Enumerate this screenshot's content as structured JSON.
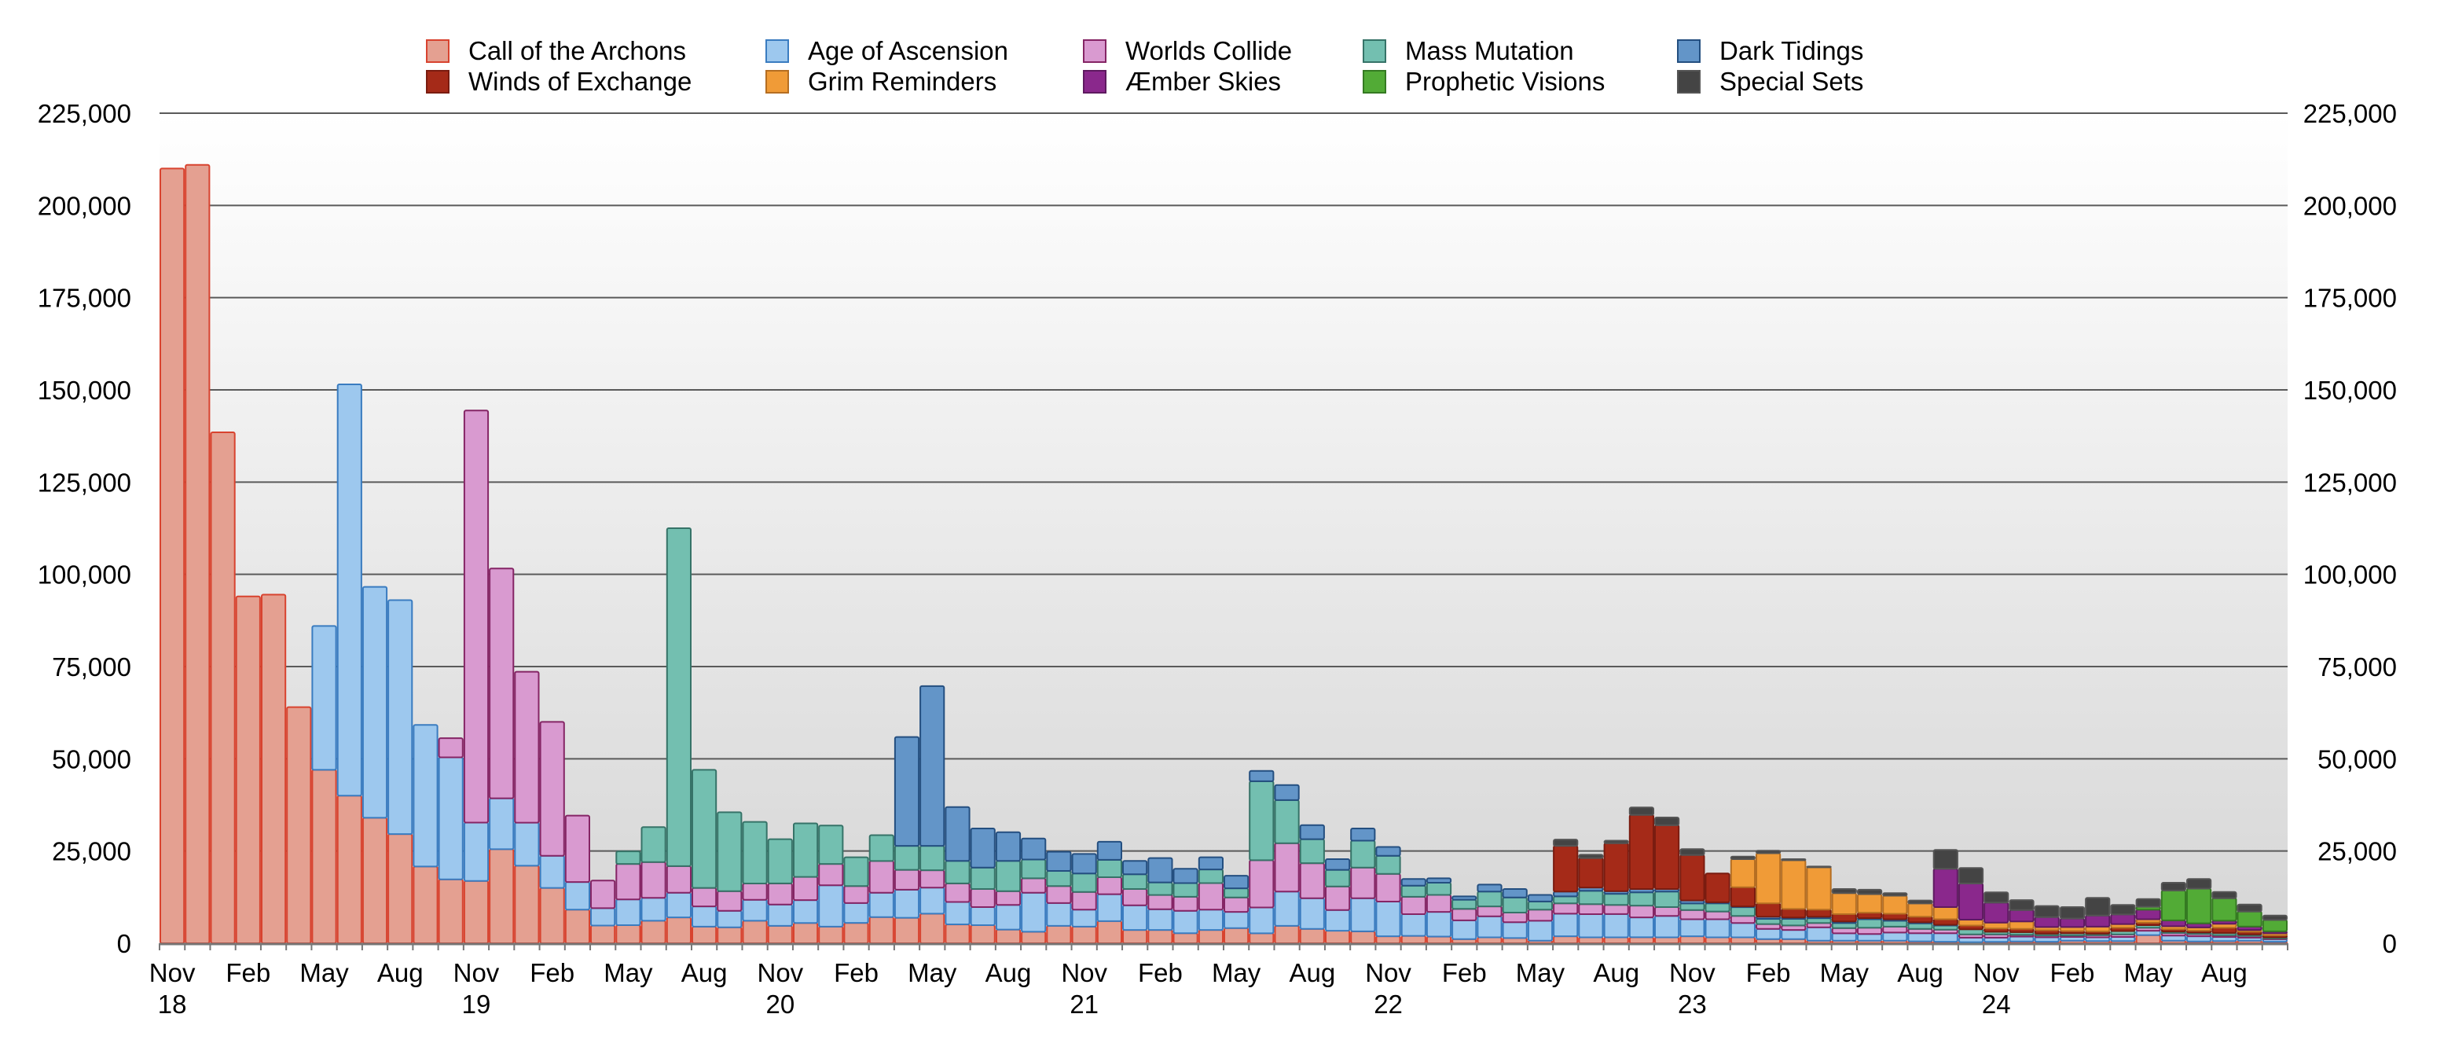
{
  "chart_data": {
    "type": "bar",
    "stacked": true,
    "title": "",
    "xlabel": "",
    "ylabel": "",
    "ylim": [
      0,
      225000
    ],
    "y_ticks": [
      "0",
      "25,000",
      "50,000",
      "75,000",
      "100,000",
      "125,000",
      "150,000",
      "175,000",
      "200,000",
      "225,000"
    ],
    "y_tick_values": [
      0,
      25000,
      50000,
      75000,
      100000,
      125000,
      150000,
      175000,
      200000,
      225000
    ],
    "y_axis_sides": [
      "left",
      "right"
    ],
    "grid": true,
    "legend_position": "top",
    "x_tick_labels": [
      {
        "month": "Nov",
        "year": "18"
      },
      {
        "month": "Feb",
        "year": ""
      },
      {
        "month": "May",
        "year": ""
      },
      {
        "month": "Aug",
        "year": ""
      },
      {
        "month": "Nov",
        "year": "19"
      },
      {
        "month": "Feb",
        "year": ""
      },
      {
        "month": "May",
        "year": ""
      },
      {
        "month": "Aug",
        "year": ""
      },
      {
        "month": "Nov",
        "year": "20"
      },
      {
        "month": "Feb",
        "year": ""
      },
      {
        "month": "May",
        "year": ""
      },
      {
        "month": "Aug",
        "year": ""
      },
      {
        "month": "Nov",
        "year": "21"
      },
      {
        "month": "Feb",
        "year": ""
      },
      {
        "month": "May",
        "year": ""
      },
      {
        "month": "Aug",
        "year": ""
      },
      {
        "month": "Nov",
        "year": "22"
      },
      {
        "month": "Feb",
        "year": ""
      },
      {
        "month": "May",
        "year": ""
      },
      {
        "month": "Aug",
        "year": ""
      },
      {
        "month": "Nov",
        "year": "23"
      },
      {
        "month": "Feb",
        "year": ""
      },
      {
        "month": "May",
        "year": ""
      },
      {
        "month": "Aug",
        "year": ""
      },
      {
        "month": "Nov",
        "year": "24"
      },
      {
        "month": "Feb",
        "year": ""
      },
      {
        "month": "May",
        "year": ""
      },
      {
        "month": "Aug",
        "year": ""
      }
    ],
    "categories": [
      "Nov 18",
      "Dec 18",
      "Jan 19",
      "Feb 19",
      "Mar 19",
      "Apr 19",
      "May 19",
      "Jun 19",
      "Jul 19",
      "Aug 19",
      "Sep 19",
      "Oct 19",
      "Nov 19",
      "Dec 19",
      "Jan 20",
      "Feb 20",
      "Mar 20",
      "Apr 20",
      "May 20",
      "Jun 20",
      "Jul 20",
      "Aug 20",
      "Sep 20",
      "Oct 20",
      "Nov 20",
      "Dec 20",
      "Jan 21",
      "Feb 21",
      "Mar 21",
      "Apr 21",
      "May 21",
      "Jun 21",
      "Jul 21",
      "Aug 21",
      "Sep 21",
      "Oct 21",
      "Nov 21",
      "Dec 21",
      "Jan 22",
      "Feb 22",
      "Mar 22",
      "Apr 22",
      "May 22",
      "Jun 22",
      "Jul 22",
      "Aug 22",
      "Sep 22",
      "Oct 22",
      "Nov 22",
      "Dec 22",
      "Jan 23",
      "Feb 23",
      "Mar 23",
      "Apr 23",
      "May 23",
      "Jun 23",
      "Jul 23",
      "Aug 23",
      "Sep 23",
      "Oct 23",
      "Nov 23",
      "Dec 23",
      "Jan 24",
      "Feb 24",
      "Mar 24",
      "Apr 24",
      "May 24",
      "Jun 24",
      "Jul 24",
      "Aug 24",
      "Sep 24",
      "Oct 24",
      "Nov 24",
      "Dec 24",
      "Jan 25",
      "Feb 25",
      "Mar 25",
      "Apr 25",
      "May 25",
      "Jun 25",
      "Jul 25",
      "Aug 25",
      "Sep 25",
      "Oct 25"
    ],
    "series": [
      {
        "name": "Call of the Archons",
        "color": "#e4a091",
        "stroke": "#d8432f",
        "values": [
          210000,
          211000,
          138500,
          94000,
          94500,
          64000,
          47000,
          40000,
          34000,
          29600,
          20800,
          17300,
          16900,
          25500,
          21000,
          15000,
          9100,
          4800,
          4900,
          6100,
          7000,
          4500,
          4300,
          6100,
          4700,
          5500,
          4500,
          5500,
          7100,
          6900,
          8000,
          5100,
          4900,
          3700,
          3100,
          4700,
          4500,
          6000,
          3600,
          3600,
          2700,
          3600,
          4100,
          2700,
          4700,
          3900,
          3400,
          3200,
          1900,
          2000,
          1800,
          1100,
          1600,
          1400,
          700,
          1900,
          1600,
          1600,
          1600,
          1600,
          1900,
          1600,
          1600,
          1100,
          1100,
          700,
          700,
          700,
          700,
          500,
          400,
          300,
          400,
          500,
          400,
          700,
          600,
          600,
          2200,
          700,
          500,
          600,
          700,
          400
        ]
      },
      {
        "name": "Age of Ascension",
        "color": "#9dc8ee",
        "stroke": "#3a7cc0",
        "values": [
          0,
          0,
          0,
          0,
          0,
          0,
          39000,
          111500,
          62600,
          63400,
          38400,
          33100,
          15800,
          13800,
          11700,
          8700,
          7500,
          4700,
          7000,
          6200,
          6700,
          5500,
          4500,
          5700,
          5800,
          6200,
          11200,
          5400,
          6600,
          7600,
          7100,
          6100,
          4900,
          6700,
          10600,
          6200,
          4600,
          7300,
          6700,
          5600,
          6100,
          5500,
          4400,
          7000,
          9300,
          8300,
          5600,
          9000,
          9400,
          5900,
          6700,
          5100,
          5700,
          4300,
          5400,
          6100,
          6300,
          6300,
          5400,
          5800,
          4600,
          4900,
          3900,
          2800,
          2500,
          3600,
          2000,
          1800,
          2200,
          2200,
          2300,
          1200,
          1100,
          1300,
          1200,
          1000,
          1000,
          1100,
          1200,
          1400,
          1400,
          1100,
          800,
          700
        ]
      },
      {
        "name": "Worlds Collide",
        "color": "#d99ad0",
        "stroke": "#852565",
        "values": [
          0,
          0,
          0,
          0,
          0,
          0,
          0,
          0,
          0,
          0,
          0,
          5200,
          111700,
          62300,
          40900,
          36300,
          18000,
          7500,
          9600,
          9700,
          7200,
          5000,
          5300,
          4400,
          5700,
          6300,
          5800,
          4600,
          8600,
          5400,
          4700,
          5000,
          4900,
          3700,
          3900,
          4600,
          4800,
          4600,
          4400,
          3900,
          3800,
          7200,
          3900,
          12800,
          13100,
          9500,
          6400,
          8300,
          7500,
          4700,
          4600,
          3100,
          2700,
          2600,
          3000,
          2800,
          2700,
          2500,
          3200,
          2400,
          2500,
          2100,
          1900,
          1300,
          1200,
          1200,
          1400,
          1700,
          1600,
          1200,
          1000,
          900,
          900,
          500,
          500,
          400,
          600,
          700,
          800,
          700,
          600,
          500,
          500,
          200
        ]
      },
      {
        "name": "Mass Mutation",
        "color": "#73bfb0",
        "stroke": "#367368",
        "values": [
          0,
          0,
          0,
          0,
          0,
          0,
          0,
          0,
          0,
          0,
          0,
          0,
          0,
          0,
          0,
          0,
          0,
          0,
          3400,
          9500,
          91600,
          32000,
          21400,
          16700,
          12000,
          14500,
          10400,
          7800,
          7000,
          6500,
          6600,
          6100,
          5800,
          8200,
          5100,
          4100,
          5000,
          4700,
          4000,
          3400,
          3700,
          3700,
          2500,
          21400,
          11700,
          6500,
          4500,
          7300,
          4900,
          3000,
          3300,
          2500,
          4000,
          4100,
          2200,
          1900,
          3600,
          3000,
          3600,
          4200,
          1800,
          2200,
          2400,
          1400,
          1800,
          1300,
          1400,
          2300,
          1600,
          1500,
          1100,
          1400,
          700,
          700,
          500,
          600,
          400,
          900,
          700,
          400,
          400,
          600,
          400,
          300
        ]
      },
      {
        "name": "Dark Tidings",
        "color": "#6395c8",
        "stroke": "#244f80",
        "values": [
          0,
          0,
          0,
          0,
          0,
          0,
          0,
          0,
          0,
          0,
          0,
          0,
          0,
          0,
          0,
          0,
          0,
          0,
          0,
          0,
          0,
          0,
          0,
          0,
          0,
          0,
          0,
          0,
          0,
          29500,
          43300,
          14600,
          10600,
          7800,
          5700,
          5200,
          5300,
          4900,
          3600,
          6600,
          3900,
          3300,
          3400,
          2800,
          4100,
          3800,
          2900,
          3300,
          2400,
          1800,
          1200,
          900,
          1900,
          2300,
          1800,
          1300,
          900,
          700,
          900,
          700,
          800,
          300,
          200,
          600,
          400,
          400,
          400,
          300,
          400,
          300,
          200,
          0,
          0,
          0,
          0,
          0,
          0,
          0,
          0,
          0,
          0,
          0,
          0,
          0
        ]
      },
      {
        "name": "Winds of Exchange",
        "color": "#a52a18",
        "stroke": "#7a1c10",
        "values": [
          0,
          0,
          0,
          0,
          0,
          0,
          0,
          0,
          0,
          0,
          0,
          0,
          0,
          0,
          0,
          0,
          0,
          0,
          0,
          0,
          0,
          0,
          0,
          0,
          0,
          0,
          0,
          0,
          0,
          0,
          0,
          0,
          0,
          0,
          0,
          0,
          0,
          0,
          0,
          0,
          0,
          0,
          0,
          0,
          0,
          0,
          0,
          0,
          0,
          0,
          0,
          0,
          0,
          0,
          0,
          12400,
          8000,
          13000,
          20100,
          17300,
          12300,
          7800,
          5200,
          3600,
          2300,
          1900,
          2000,
          1500,
          1500,
          1500,
          1500,
          1000,
          900,
          900,
          900,
          600,
          600,
          900,
          700,
          600,
          500,
          1400,
          700,
          500
        ]
      },
      {
        "name": "Grim Reminders",
        "color": "#f09b37",
        "stroke": "#b56e22",
        "values": [
          0,
          0,
          0,
          0,
          0,
          0,
          0,
          0,
          0,
          0,
          0,
          0,
          0,
          0,
          0,
          0,
          0,
          0,
          0,
          0,
          0,
          0,
          0,
          0,
          0,
          0,
          0,
          0,
          0,
          0,
          0,
          0,
          0,
          0,
          0,
          0,
          0,
          0,
          0,
          0,
          0,
          0,
          0,
          0,
          0,
          0,
          0,
          0,
          0,
          0,
          0,
          0,
          0,
          0,
          0,
          0,
          0,
          0,
          0,
          0,
          0,
          0,
          7600,
          13600,
          13200,
          11500,
          5700,
          5000,
          4900,
          3600,
          3300,
          1600,
          1600,
          2000,
          900,
          1100,
          1300,
          1000,
          900,
          800,
          900,
          1100,
          500,
          600
        ]
      },
      {
        "name": "Æmber Skies",
        "color": "#8a288c",
        "stroke": "#5e1a60",
        "values": [
          0,
          0,
          0,
          0,
          0,
          0,
          0,
          0,
          0,
          0,
          0,
          0,
          0,
          0,
          0,
          0,
          0,
          0,
          0,
          0,
          0,
          0,
          0,
          0,
          0,
          0,
          0,
          0,
          0,
          0,
          0,
          0,
          0,
          0,
          0,
          0,
          0,
          0,
          0,
          0,
          0,
          0,
          0,
          0,
          0,
          0,
          0,
          0,
          0,
          0,
          0,
          0,
          0,
          0,
          0,
          0,
          0,
          0,
          0,
          0,
          0,
          0,
          0,
          0,
          0,
          0,
          0,
          0,
          0,
          0,
          10400,
          9800,
          5400,
          3100,
          2700,
          2300,
          3000,
          2600,
          2600,
          1600,
          1100,
          800,
          900,
          500
        ]
      },
      {
        "name": "Prophetic Visions",
        "color": "#52ab36",
        "stroke": "#357a22",
        "values": [
          0,
          0,
          0,
          0,
          0,
          0,
          0,
          0,
          0,
          0,
          0,
          0,
          0,
          0,
          0,
          0,
          0,
          0,
          0,
          0,
          0,
          0,
          0,
          0,
          0,
          0,
          0,
          0,
          0,
          0,
          0,
          0,
          0,
          0,
          0,
          0,
          0,
          0,
          0,
          0,
          0,
          0,
          0,
          0,
          0,
          0,
          0,
          0,
          0,
          0,
          0,
          0,
          0,
          0,
          0,
          0,
          0,
          0,
          0,
          0,
          0,
          0,
          0,
          0,
          0,
          0,
          0,
          0,
          0,
          0,
          0,
          0,
          0,
          0,
          0,
          0,
          0,
          0,
          800,
          8100,
          9400,
          6100,
          4100,
          3100
        ]
      },
      {
        "name": "Special Sets",
        "color": "#444444",
        "stroke": "#555555",
        "values": [
          0,
          0,
          0,
          0,
          0,
          0,
          0,
          0,
          0,
          0,
          0,
          0,
          0,
          0,
          0,
          0,
          0,
          0,
          0,
          0,
          0,
          0,
          0,
          0,
          0,
          0,
          0,
          0,
          0,
          0,
          0,
          0,
          0,
          0,
          0,
          0,
          0,
          0,
          0,
          0,
          0,
          0,
          0,
          0,
          0,
          0,
          0,
          0,
          0,
          0,
          0,
          0,
          0,
          0,
          0,
          1700,
          900,
          700,
          2000,
          2100,
          1600,
          0,
          700,
          700,
          300,
          200,
          1100,
          1200,
          700,
          800,
          5100,
          4200,
          2800,
          2700,
          3000,
          3100,
          4800,
          2600,
          2100,
          2100,
          2600,
          1700,
          1900,
          1200
        ]
      }
    ]
  }
}
